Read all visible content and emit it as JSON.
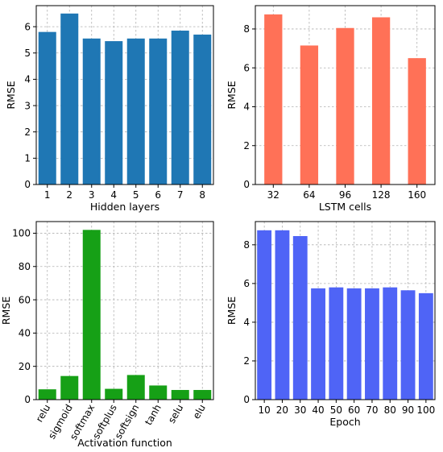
{
  "chart_data": [
    {
      "type": "bar",
      "name": "hidden-layers",
      "categories": [
        "1",
        "2",
        "3",
        "4",
        "5",
        "6",
        "7",
        "8"
      ],
      "values": [
        5.8,
        6.5,
        5.55,
        5.45,
        5.55,
        5.55,
        5.85,
        5.7
      ],
      "xlabel": "Hidden layers",
      "ylabel": "RMSE",
      "ylim": [
        0,
        6.8
      ],
      "yticks": [
        "0",
        "1",
        "2",
        "3",
        "4",
        "5",
        "6"
      ],
      "color": "#1f77b4",
      "grid": true,
      "rotate_xticks": false
    },
    {
      "type": "bar",
      "name": "lstm-cells",
      "categories": [
        "32",
        "64",
        "96",
        "128",
        "160"
      ],
      "values": [
        8.75,
        7.15,
        8.05,
        8.6,
        6.5
      ],
      "xlabel": "LSTM cells",
      "ylabel": "RMSE",
      "ylim": [
        0,
        9.2
      ],
      "yticks": [
        "0",
        "2",
        "4",
        "6",
        "8"
      ],
      "color": "#ff7157",
      "grid": true,
      "rotate_xticks": false
    },
    {
      "type": "bar",
      "name": "activation-function",
      "categories": [
        "relu",
        "sigmoid",
        "softmax",
        "softplus",
        "softsign",
        "tanh",
        "selu",
        "elu"
      ],
      "values": [
        6.2,
        14.2,
        102.0,
        6.5,
        14.8,
        8.5,
        5.8,
        5.8
      ],
      "xlabel": "Activation function",
      "ylabel": "RMSE",
      "ylim": [
        0,
        107
      ],
      "yticks": [
        "0",
        "20",
        "40",
        "60",
        "80",
        "100"
      ],
      "color": "#16a016",
      "grid": true,
      "rotate_xticks": true
    },
    {
      "type": "bar",
      "name": "epoch",
      "categories": [
        "10",
        "20",
        "30",
        "40",
        "50",
        "60",
        "70",
        "80",
        "90",
        "100"
      ],
      "values": [
        8.75,
        8.75,
        8.45,
        5.75,
        5.8,
        5.75,
        5.75,
        5.8,
        5.65,
        5.5
      ],
      "xlabel": "Epoch",
      "ylabel": "RMSE",
      "ylim": [
        0,
        9.2
      ],
      "yticks": [
        "0",
        "2",
        "4",
        "6",
        "8"
      ],
      "color": "#4f64f6",
      "grid": true,
      "rotate_xticks": false
    }
  ]
}
